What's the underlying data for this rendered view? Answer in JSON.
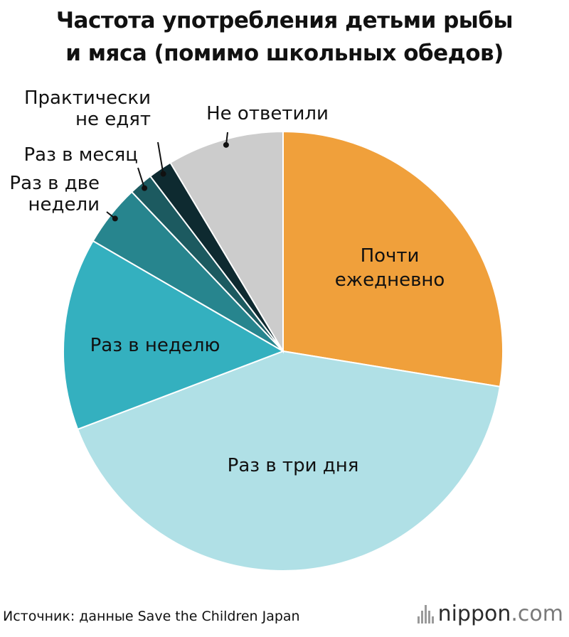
{
  "title_lines": [
    "Частота употребления детьми рыбы",
    "и мяса (помимо школьных обедов)"
  ],
  "source": "Источник: данные Save the Children Japan",
  "logo": {
    "name": "nippon",
    "domain": ".com"
  },
  "colors": {
    "Почти ежедневно": "#f0a03b",
    "Раз в три дня": "#b0e0e6",
    "Раз в неделю": "#34b0bf",
    "Раз в две недели": "#27858e",
    "Раз в месяц": "#1c5a60",
    "Практически не едят": "#0e2a30",
    "Не ответили": "#cccccc"
  },
  "chart_data": {
    "type": "pie",
    "title": "Частота употребления детьми рыбы и мяса (помимо школьных обедов)",
    "slices": [
      {
        "label": "Почти ежедневно",
        "value": 26.7
      },
      {
        "label": "Раз в три дня",
        "value": 40.3
      },
      {
        "label": "Раз в неделю",
        "value": 13.7
      },
      {
        "label": "Раз в две недели",
        "value": 4.4
      },
      {
        "label": "Раз в месяц",
        "value": 1.7
      },
      {
        "label": "Практически не едят",
        "value": 1.7
      },
      {
        "label": "Не ответили",
        "value": 8.3
      }
    ],
    "legend": "none"
  },
  "labels": {
    "s0": [
      "Почти",
      "ежедневно"
    ],
    "s1": [
      "Раз в три дня"
    ],
    "s2": [
      "Раз в неделю"
    ],
    "s3": [
      "Раз в две",
      "недели"
    ],
    "s4": [
      "Раз в месяц"
    ],
    "s5": [
      "Практически",
      "не едят"
    ],
    "s6": [
      "Не ответили"
    ]
  }
}
